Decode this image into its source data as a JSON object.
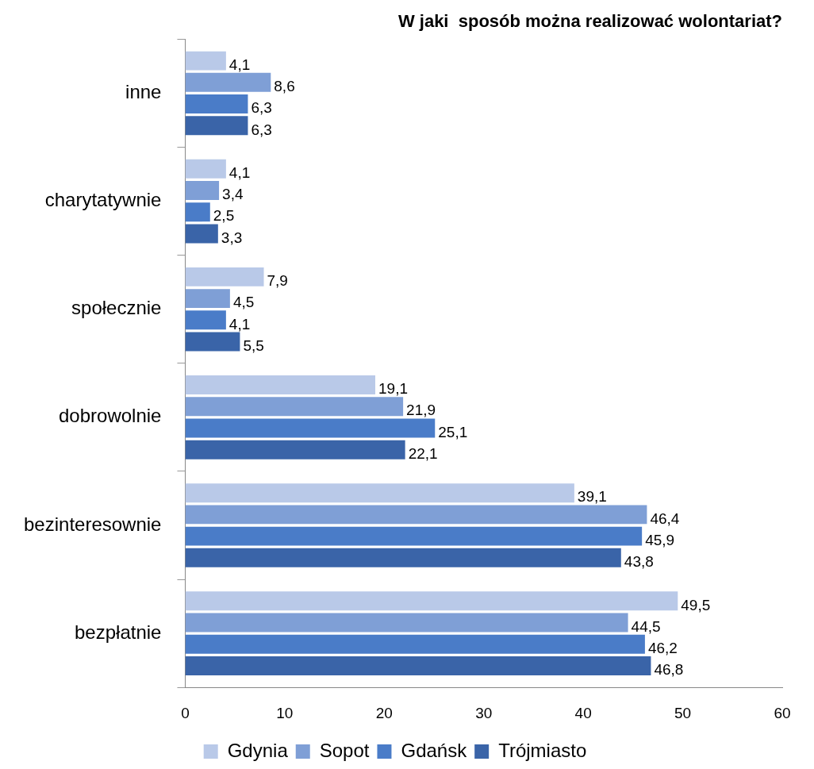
{
  "chart_data": {
    "type": "bar",
    "orientation": "horizontal",
    "title": "W jaki  sposób można realizować wolontariat?",
    "categories": [
      "inne",
      "charytatywnie",
      "społecznie",
      "dobrowolnie",
      "bezinteresownie",
      "bezpłatnie"
    ],
    "series": [
      {
        "name": "Gdynia",
        "color": "#b9c9e8",
        "values": [
          4.1,
          4.1,
          7.9,
          19.1,
          39.1,
          49.5
        ],
        "value_labels": [
          "4,1",
          "4,1",
          "7,9",
          "19,1",
          "39,1",
          "49,5"
        ]
      },
      {
        "name": "Sopot",
        "color": "#7f9fd6",
        "values": [
          8.6,
          3.4,
          4.5,
          21.9,
          46.4,
          44.5
        ],
        "value_labels": [
          "8,6",
          "3,4",
          "4,5",
          "21,9",
          "46,4",
          "44,5"
        ]
      },
      {
        "name": "Gdańsk",
        "color": "#4a7cc8",
        "values": [
          6.3,
          2.5,
          4.1,
          25.1,
          45.9,
          46.2
        ],
        "value_labels": [
          "6,3",
          "2,5",
          "4,1",
          "25,1",
          "45,9",
          "46,2"
        ]
      },
      {
        "name": "Trójmiasto",
        "color": "#3a64a8",
        "values": [
          6.3,
          3.3,
          5.5,
          22.1,
          43.8,
          46.8
        ],
        "value_labels": [
          "6,3",
          "3,3",
          "5,5",
          "22,1",
          "43,8",
          "46,8"
        ]
      }
    ],
    "xlim": [
      0,
      60
    ],
    "xticks": [
      0,
      10,
      20,
      30,
      40,
      50,
      60
    ],
    "grid": false,
    "legend": "bottom"
  }
}
